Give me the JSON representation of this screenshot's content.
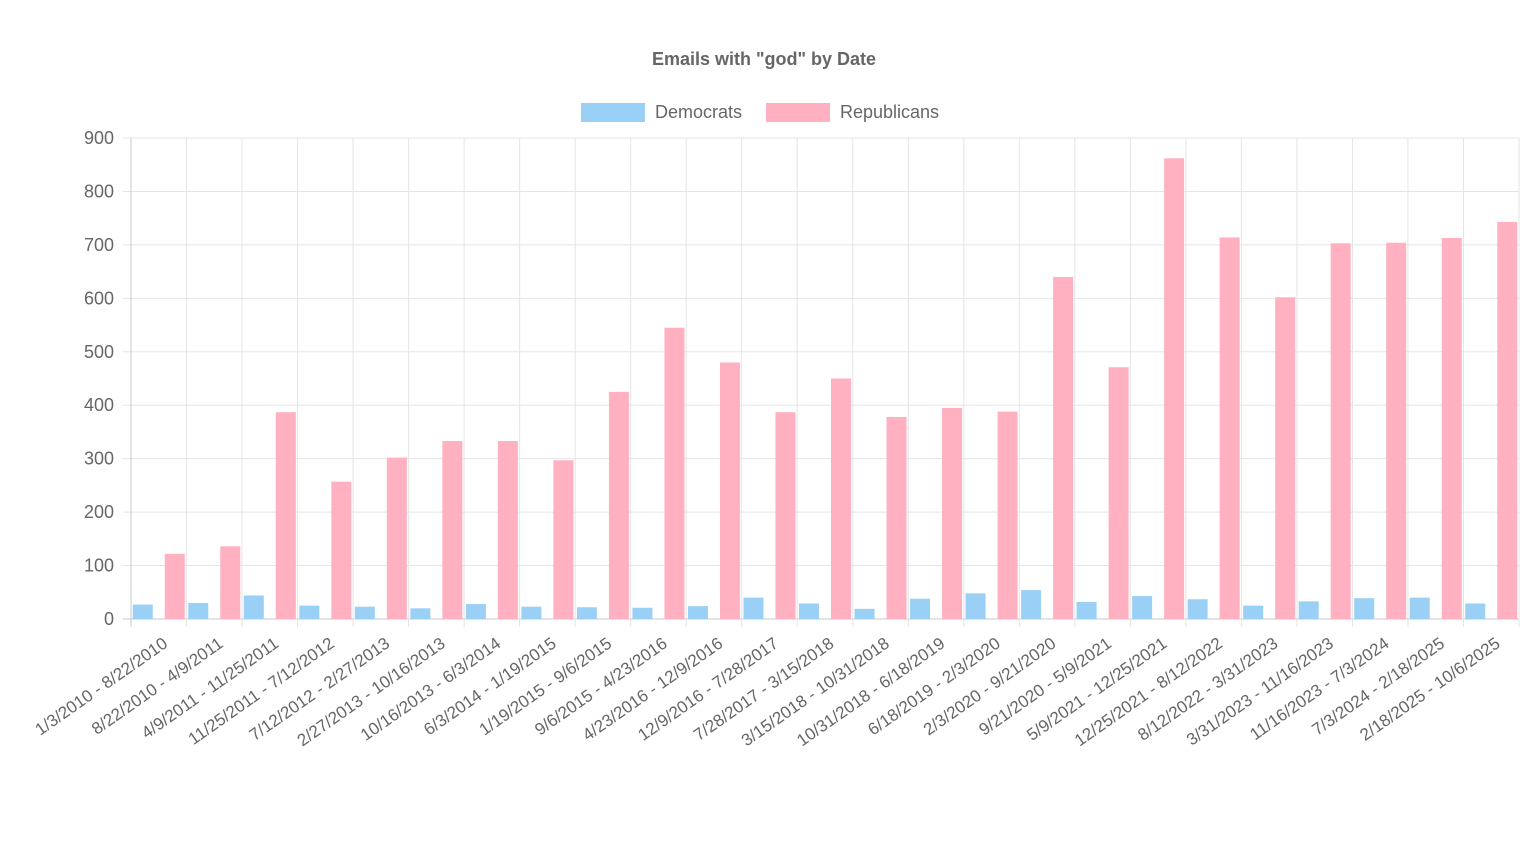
{
  "chart_data": {
    "type": "bar",
    "title": "Emails with \"god\" by Date",
    "xlabel": "",
    "ylabel": "",
    "ylim": [
      0,
      900
    ],
    "yticks": [
      0,
      100,
      200,
      300,
      400,
      500,
      600,
      700,
      800,
      900
    ],
    "grid": true,
    "legend_position": "top-center",
    "categories": [
      "1/3/2010 - 8/22/2010",
      "8/22/2010 - 4/9/2011",
      "4/9/2011 - 11/25/2011",
      "11/25/2011 - 7/12/2012",
      "7/12/2012 - 2/27/2013",
      "2/27/2013 - 10/16/2013",
      "10/16/2013 - 6/3/2014",
      "6/3/2014 - 1/19/2015",
      "1/19/2015 - 9/6/2015",
      "9/6/2015 - 4/23/2016",
      "4/23/2016 - 12/9/2016",
      "12/9/2016 - 7/28/2017",
      "7/28/2017 - 3/15/2018",
      "3/15/2018 - 10/31/2018",
      "10/31/2018 - 6/18/2019",
      "6/18/2019 - 2/3/2020",
      "2/3/2020 - 9/21/2020",
      "9/21/2020 - 5/9/2021",
      "5/9/2021 - 12/25/2021",
      "12/25/2021 - 8/12/2022",
      "8/12/2022 - 3/31/2023",
      "3/31/2023 - 11/16/2023",
      "11/16/2023 - 7/3/2024",
      "7/3/2024 - 2/18/2025",
      "2/18/2025 - 10/6/2025"
    ],
    "series": [
      {
        "name": "Democrats",
        "color": "#9ad0f5",
        "border_color": "#36a2eb",
        "values": [
          27,
          30,
          44,
          25,
          23,
          20,
          28,
          23,
          22,
          21,
          24,
          40,
          29,
          19,
          38,
          48,
          54,
          32,
          43,
          37,
          25,
          33,
          39,
          40,
          29
        ]
      },
      {
        "name": "Republicans",
        "color": "#ffb1c1",
        "border_color": "#ff6384",
        "values": [
          122,
          136,
          387,
          257,
          302,
          333,
          333,
          297,
          425,
          545,
          480,
          387,
          450,
          378,
          395,
          388,
          640,
          471,
          862,
          714,
          602,
          703,
          704,
          713,
          743
        ]
      }
    ]
  }
}
